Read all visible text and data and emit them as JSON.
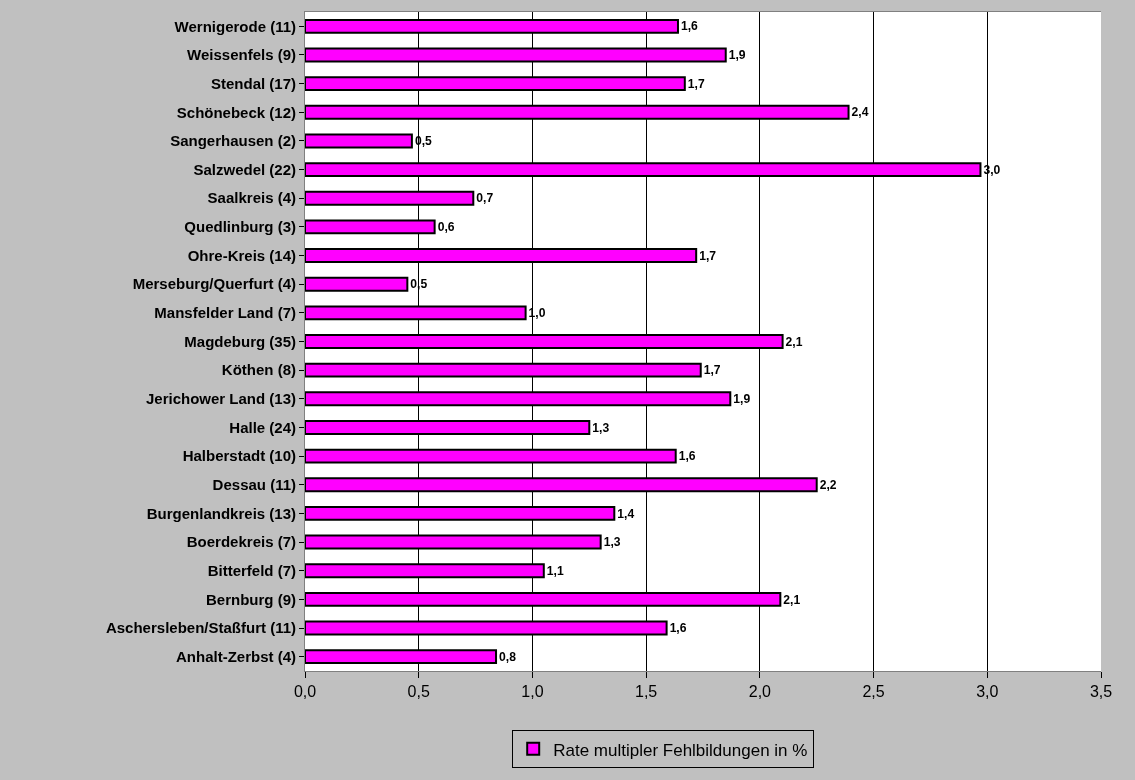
{
  "chart_data": {
    "type": "bar",
    "orientation": "horizontal",
    "categories": [
      "Wernigerode (11)",
      "Weissenfels (9)",
      "Stendal (17)",
      "Schönebeck (12)",
      "Sangerhausen (2)",
      "Salzwedel (22)",
      "Saalkreis (4)",
      "Quedlinburg (3)",
      "Ohre-Kreis (14)",
      "Merseburg/Querfurt (4)",
      "Mansfelder Land (7)",
      "Magdeburg (35)",
      "Köthen (8)",
      "Jerichower Land (13)",
      "Halle (24)",
      "Halberstadt (10)",
      "Dessau (11)",
      "Burgenlandkreis (13)",
      "Boerdekreis (7)",
      "Bitterfeld (7)",
      "Bernburg (9)",
      "Aschersleben/Staßfurt (11)",
      "Anhalt-Zerbst (4)"
    ],
    "series": [
      {
        "name": "Rate multipler Fehlbildungen in %",
        "color": "#ff00ff",
        "values": [
          1.64,
          1.85,
          1.67,
          2.39,
          0.47,
          2.97,
          0.74,
          0.57,
          1.72,
          0.45,
          0.97,
          2.1,
          1.74,
          1.87,
          1.25,
          1.63,
          2.25,
          1.36,
          1.3,
          1.05,
          2.09,
          1.59,
          0.84
        ],
        "value_labels": [
          "1,6",
          "1,9",
          "1,7",
          "2,4",
          "0,5",
          "3,0",
          "0,7",
          "0,6",
          "1,7",
          "0,5",
          "1,0",
          "2,1",
          "1,7",
          "1,9",
          "1,3",
          "1,6",
          "2,2",
          "1,4",
          "1,3",
          "1,1",
          "2,1",
          "1,6",
          "0,8"
        ]
      }
    ],
    "xlim": [
      0,
      3.5
    ],
    "xticks": [
      {
        "value": 0,
        "label": "0,0"
      },
      {
        "value": 0.5,
        "label": "0,5"
      },
      {
        "value": 1,
        "label": "1,0"
      },
      {
        "value": 1.5,
        "label": "1,5"
      },
      {
        "value": 2,
        "label": "2,0"
      },
      {
        "value": 2.5,
        "label": "2,5"
      },
      {
        "value": 3,
        "label": "3,0"
      },
      {
        "value": 3.5,
        "label": "3,5"
      }
    ],
    "grid": "x",
    "legend": "bottom"
  }
}
